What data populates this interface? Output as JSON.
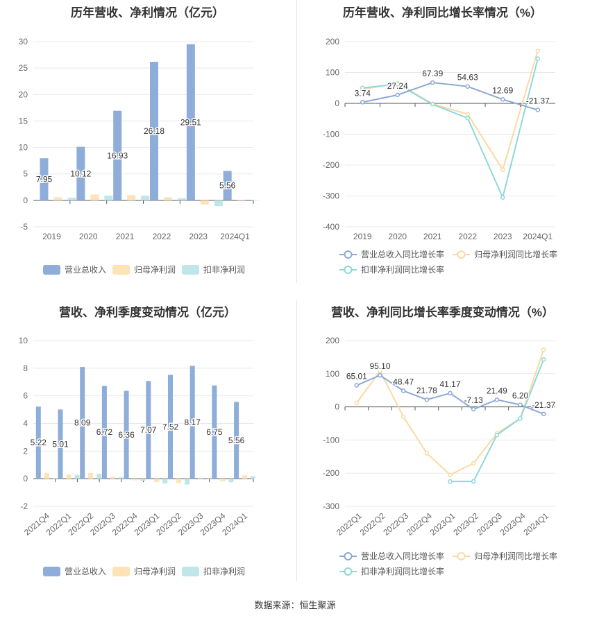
{
  "colors": {
    "revenue": "#8fadd9",
    "net_profit": "#fde3b5",
    "deducted_profit": "#bfe6e8",
    "rev_line": "#8aa9d6",
    "np_line": "#fbd9a3",
    "dp_line": "#8ed8da"
  },
  "source": "数据来源：恒生聚源",
  "chart_data": [
    {
      "type": "bar",
      "title": "历年营收、净利情况（亿元）",
      "categories": [
        "2019",
        "2020",
        "2021",
        "2022",
        "2023",
        "2024Q1"
      ],
      "ylim": [
        -5,
        30
      ],
      "yticks": [
        "-5",
        "0",
        "5",
        "10",
        "15",
        "20",
        "25",
        "30"
      ],
      "series": [
        {
          "name": "营业总收入",
          "values": [
            7.95,
            10.12,
            16.93,
            26.18,
            29.51,
            5.56
          ],
          "labels": [
            "7.95",
            "10.12",
            "16.93",
            "26.18",
            "29.51",
            "5.56"
          ]
        },
        {
          "name": "归母净利润",
          "values": [
            0.6,
            1.1,
            1.0,
            0.6,
            -0.8,
            0.1
          ]
        },
        {
          "name": "扣非净利润",
          "values": [
            0.5,
            0.9,
            0.9,
            0.4,
            -1.1,
            0.1
          ]
        }
      ],
      "legend": "bottom",
      "grid": true
    },
    {
      "type": "line",
      "title": "历年营收、净利同比增长率情况（%）",
      "categories": [
        "2019",
        "2020",
        "2021",
        "2022",
        "2023",
        "2024Q1"
      ],
      "ylim": [
        -400,
        200
      ],
      "yticks": [
        "-400",
        "-300",
        "-200",
        "-100",
        "0",
        "100",
        "200"
      ],
      "series": [
        {
          "name": "营业总收入同比增长率",
          "values": [
            3.74,
            27.24,
            67.39,
            54.63,
            12.69,
            -21.37
          ],
          "labels": [
            "3.74",
            "27.24",
            "67.39",
            "54.63",
            "12.69",
            "-21.37"
          ]
        },
        {
          "name": "归母净利润同比增长率",
          "values": [
            45,
            65,
            -2,
            -35,
            -215,
            170
          ]
        },
        {
          "name": "扣非净利润同比增长率",
          "values": [
            50,
            62,
            -3,
            -48,
            -305,
            145
          ]
        }
      ],
      "legend": "bottom",
      "grid": true
    },
    {
      "type": "bar",
      "title": "营收、净利季度变动情况（亿元）",
      "categories": [
        "2021Q4",
        "2022Q1",
        "2022Q2",
        "2022Q3",
        "2022Q4",
        "2023Q1",
        "2023Q2",
        "2023Q3",
        "2023Q4",
        "2024Q1"
      ],
      "ylim": [
        -2,
        10
      ],
      "yticks": [
        "-2",
        "0",
        "2",
        "4",
        "6",
        "8",
        "10"
      ],
      "series": [
        {
          "name": "营业总收入",
          "values": [
            5.22,
            5.01,
            8.09,
            6.72,
            6.36,
            7.07,
            7.52,
            8.17,
            6.75,
            5.56
          ],
          "labels": [
            "5.22",
            "5.01",
            "8.09",
            "6.72",
            "6.36",
            "7.07",
            "7.52",
            "8.17",
            "6.75",
            "5.56"
          ]
        },
        {
          "name": "归母净利润",
          "values": [
            0.42,
            0.3,
            0.42,
            0.12,
            -0.12,
            -0.25,
            -0.3,
            0.02,
            -0.18,
            0.25
          ]
        },
        {
          "name": "扣非净利润",
          "values": [
            0.05,
            0.28,
            0.35,
            0.1,
            -0.15,
            -0.35,
            -0.42,
            0.0,
            -0.25,
            0.18
          ]
        }
      ],
      "legend": "bottom",
      "grid": true
    },
    {
      "type": "line",
      "title": "营收、净利同比增长率季度变动情况（%）",
      "categories": [
        "2022Q1",
        "2022Q2",
        "2022Q3",
        "2022Q4",
        "2023Q1",
        "2023Q2",
        "2023Q3",
        "2023Q4",
        "2024Q1"
      ],
      "ylim": [
        -300,
        200
      ],
      "yticks": [
        "-300",
        "-200",
        "-100",
        "0",
        "100",
        "200"
      ],
      "series": [
        {
          "name": "营业总收入同比增长率",
          "values": [
            65.01,
            95.1,
            48.47,
            21.78,
            41.17,
            -7.13,
            21.49,
            6.2,
            -21.37
          ],
          "labels": [
            "65.01",
            "95.10",
            "48.47",
            "21.78",
            "41.17",
            "-7.13",
            "21.49",
            "6.20",
            "-21.37"
          ]
        },
        {
          "name": "归母净利润同比增长率",
          "values": [
            12,
            108,
            -30,
            -140,
            -205,
            -170,
            -80,
            -35,
            172
          ]
        },
        {
          "name": "扣非净利润同比增长率",
          "values": [
            null,
            null,
            null,
            null,
            -225,
            -225,
            -85,
            -35,
            143
          ]
        }
      ],
      "legend": "bottom",
      "grid": true
    }
  ]
}
